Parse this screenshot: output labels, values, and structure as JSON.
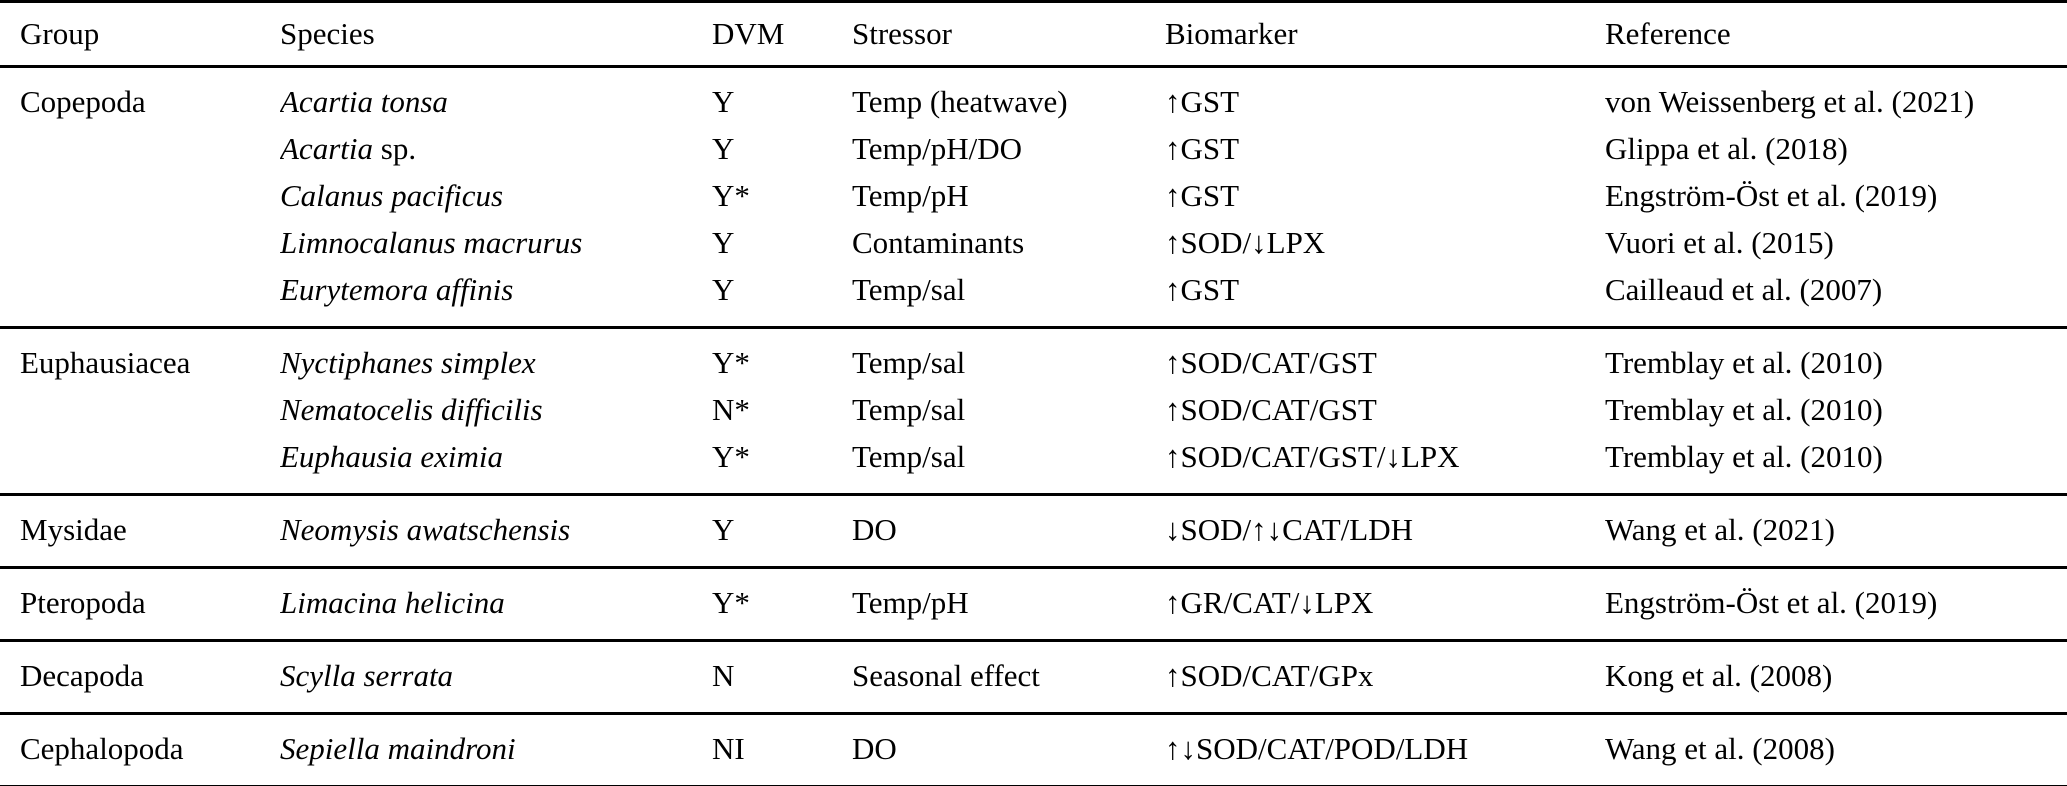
{
  "table": {
    "columns": {
      "group": "Group",
      "species": "Species",
      "dvm": "DVM",
      "stressor": "Stressor",
      "biomarker": "Biomarker",
      "reference": "Reference"
    },
    "rows": [
      {
        "group": "Copepoda",
        "species_italic": "Acartia tonsa",
        "species_roman": "",
        "dvm": "Y",
        "stressor": "Temp (heatwave)",
        "biomarker": "↑GST",
        "reference": "von Weissenberg et al. (2021)"
      },
      {
        "group": "",
        "species_italic": "Acartia",
        "species_roman": " sp.",
        "dvm": "Y",
        "stressor": "Temp/pH/DO",
        "biomarker": "↑GST",
        "reference": "Glippa et al. (2018)"
      },
      {
        "group": "",
        "species_italic": "Calanus pacificus",
        "species_roman": "",
        "dvm": "Y*",
        "stressor": "Temp/pH",
        "biomarker": "↑GST",
        "reference": "Engström-Öst et al. (2019)"
      },
      {
        "group": "",
        "species_italic": "Limnocalanus macrurus",
        "species_roman": "",
        "dvm": "Y",
        "stressor": "Contaminants",
        "biomarker": "↑SOD/↓LPX",
        "reference": "Vuori et al. (2015)"
      },
      {
        "group": "",
        "species_italic": "Eurytemora affinis",
        "species_roman": "",
        "dvm": "Y",
        "stressor": "Temp/sal",
        "biomarker": "↑GST",
        "reference": "Cailleaud et al. (2007)"
      },
      {
        "group": "Euphausiacea",
        "species_italic": "Nyctiphanes simplex",
        "species_roman": "",
        "dvm": "Y*",
        "stressor": "Temp/sal",
        "biomarker": "↑SOD/CAT/GST",
        "reference": "Tremblay et al. (2010)"
      },
      {
        "group": "",
        "species_italic": "Nematocelis difficilis",
        "species_roman": "",
        "dvm": "N*",
        "stressor": "Temp/sal",
        "biomarker": "↑SOD/CAT/GST",
        "reference": "Tremblay et al. (2010)"
      },
      {
        "group": "",
        "species_italic": "Euphausia eximia",
        "species_roman": "",
        "dvm": "Y*",
        "stressor": "Temp/sal",
        "biomarker": "↑SOD/CAT/GST/↓LPX",
        "reference": "Tremblay et al. (2010)"
      },
      {
        "group": "Mysidae",
        "species_italic": "Neomysis awatschensis",
        "species_roman": "",
        "dvm": "Y",
        "stressor": "DO",
        "biomarker": "↓SOD/↑↓CAT/LDH",
        "reference": "Wang et al. (2021)"
      },
      {
        "group": "Pteropoda",
        "species_italic": "Limacina helicina",
        "species_roman": "",
        "dvm": "Y*",
        "stressor": "Temp/pH",
        "biomarker": "↑GR/CAT/↓LPX",
        "reference": "Engström-Öst et al. (2019)"
      },
      {
        "group": "Decapoda",
        "species_italic": "Scylla serrata",
        "species_roman": "",
        "dvm": "N",
        "stressor": "Seasonal effect",
        "biomarker": "↑SOD/CAT/GPx",
        "reference": "Kong et al. (2008)"
      },
      {
        "group": "Cephalopoda",
        "species_italic": "Sepiella maindroni",
        "species_roman": "",
        "dvm": "NI",
        "stressor": "DO",
        "biomarker": "↑↓SOD/CAT/POD/LDH",
        "reference": "Wang et al. (2008)"
      }
    ]
  }
}
